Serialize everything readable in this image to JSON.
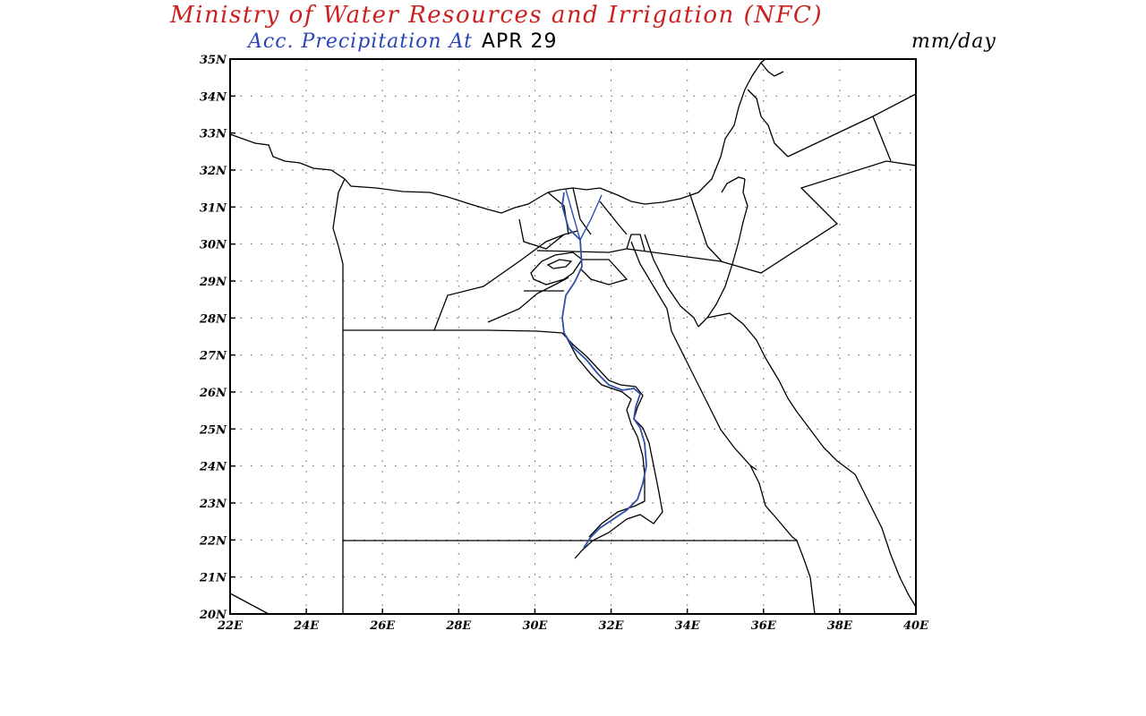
{
  "header": {
    "title": "Ministry of Water Resources and Irrigation (NFC)",
    "subtitle": "Acc. Precipitation  At",
    "date": "APR 29",
    "units": "mm/day"
  },
  "colors": {
    "title": "#cc1f1f",
    "subtitle": "#2a45b8",
    "nile": "#2f4fa8",
    "border": "#000000",
    "grid": "#555555"
  },
  "map": {
    "lon_range": [
      22,
      40
    ],
    "lat_range": [
      20,
      35
    ],
    "grid": true,
    "lon_ticks": [
      "22E",
      "24E",
      "26E",
      "28E",
      "30E",
      "32E",
      "34E",
      "36E",
      "38E",
      "40E"
    ],
    "lat_ticks": [
      "20N",
      "21N",
      "22N",
      "23N",
      "24N",
      "25N",
      "26N",
      "27N",
      "28N",
      "29N",
      "30N",
      "31N",
      "32N",
      "33N",
      "34N",
      "35N"
    ]
  }
}
